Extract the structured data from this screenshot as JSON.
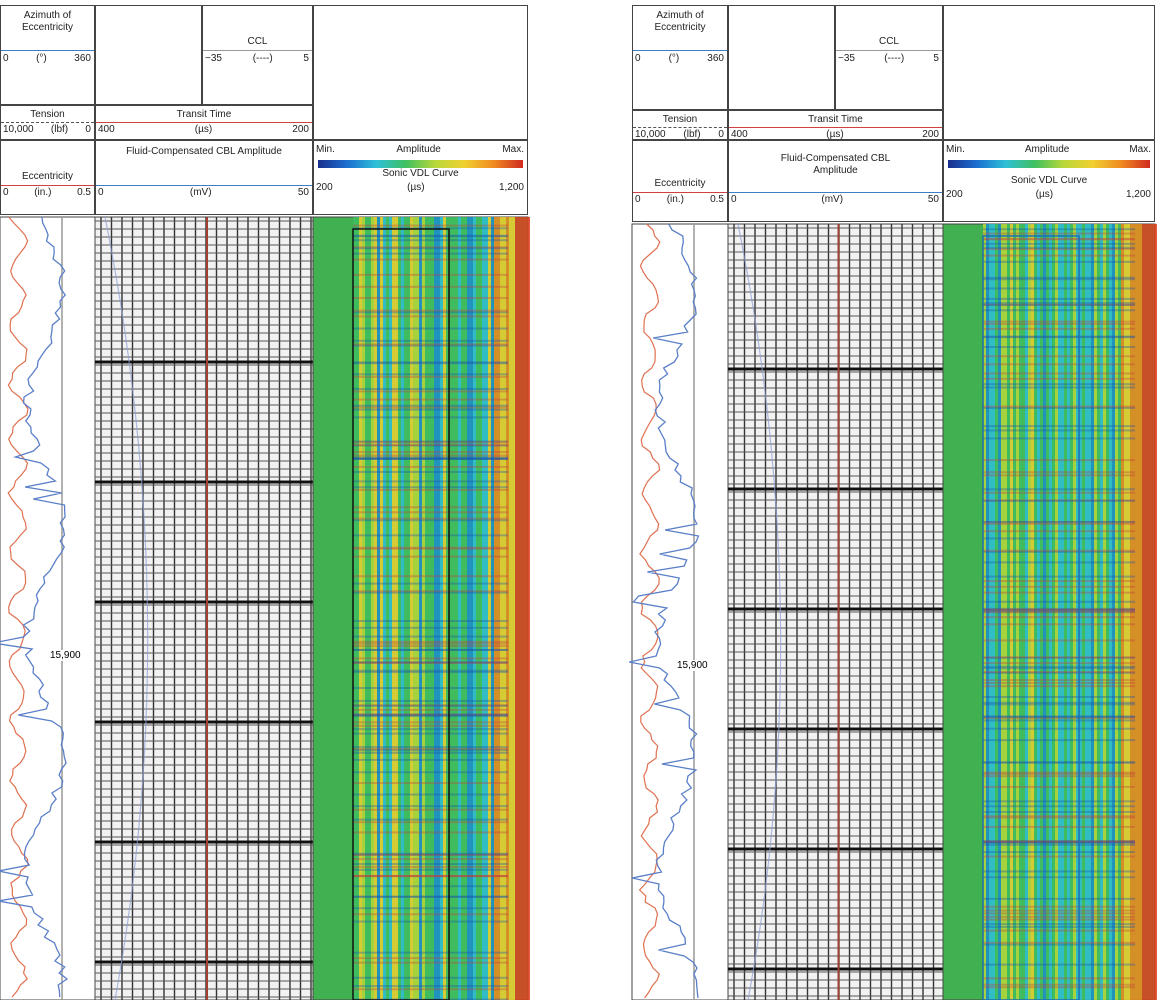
{
  "panels": [
    {
      "azimuth": {
        "title": "Azimuth of Eccentricity",
        "min": "0",
        "unit": "(°)",
        "max": "360"
      },
      "ccl": {
        "title": "CCL",
        "min": "−35",
        "unit": "(----)",
        "max": "5"
      },
      "tension": {
        "title": "Tension",
        "min": "10,000",
        "unit": "(lbf)",
        "max": "0"
      },
      "transit_time": {
        "title": "Transit Time",
        "min": "400",
        "unit": "(µs)",
        "max": "200"
      },
      "eccentricity": {
        "title": "Eccentricity",
        "min": "0",
        "unit": "(in.)",
        "max": "0.5"
      },
      "cbl_amplitude": {
        "title": "Fluid-Compensated CBL Amplitude",
        "min": "0",
        "unit": "(mV)",
        "max": "50"
      },
      "amplitude": {
        "min": "Min.",
        "title": "Amplitude",
        "max": "Max."
      },
      "vdl": {
        "title": "Sonic VDL Curve",
        "min": "200",
        "unit": "(µs)",
        "max": "1,200"
      },
      "depth_label": "15,900"
    },
    {
      "azimuth": {
        "title": "Azimuth of Eccentricity",
        "min": "0",
        "unit": "(°)",
        "max": "360"
      },
      "ccl": {
        "title": "CCL",
        "min": "−35",
        "unit": "(----)",
        "max": "5"
      },
      "tension": {
        "title": "Tension",
        "min": "10,000",
        "unit": "(lbf)",
        "max": "0"
      },
      "transit_time": {
        "title": "Transit Time",
        "min": "400",
        "unit": "(µs)",
        "max": "200"
      },
      "eccentricity": {
        "title": "Eccentricity",
        "min": "0",
        "unit": "(in.)",
        "max": "0.5"
      },
      "cbl_amplitude": {
        "title": "Fluid-Compensated CBL Amplitude",
        "min": "0",
        "unit": "(mV)",
        "max": "50"
      },
      "amplitude": {
        "min": "Min.",
        "title": "Amplitude",
        "max": "Max."
      },
      "vdl": {
        "title": "Sonic VDL Curve",
        "min": "200",
        "unit": "(µs)",
        "max": "1,200"
      },
      "depth_label": "15,900"
    }
  ]
}
